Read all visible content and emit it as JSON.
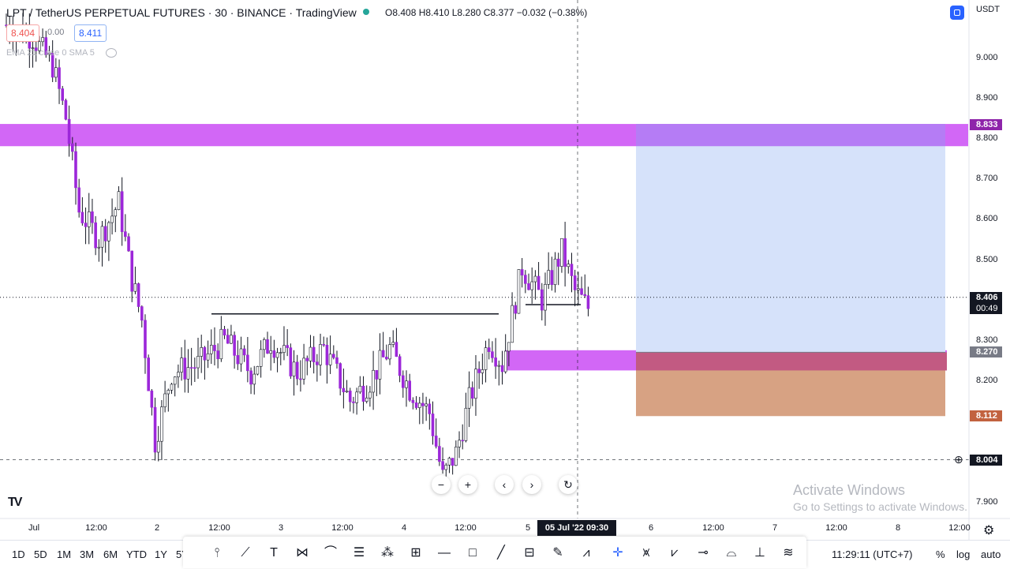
{
  "header": {
    "title": "LPT / TetherUS PERPETUAL FUTURES · 30 · BINANCE · TradingView",
    "ohlc": "O8.408 H8.410 L8.280 C8.377 −0.032 (−0.38%)",
    "sell_price": "8.404",
    "spread": "0.00",
    "buy_price": "8.411",
    "indicator": "EMA 21 close 0 SMA 5",
    "currency": "USDT",
    "status_color": "#26a69a"
  },
  "chart_data": {
    "type": "candlestick",
    "symbol": "LPT / TetherUS PERPETUAL FUTURES",
    "interval": "30",
    "exchange": "BINANCE",
    "ylim": [
      7.86,
      9.12
    ],
    "y_ticks": [
      "9.000",
      "8.900",
      "8.800",
      "8.700",
      "8.600",
      "8.500",
      "8.300",
      "8.200",
      "7.900"
    ],
    "x_ticks": [
      "Jul",
      "12:00",
      "2",
      "12:00",
      "3",
      "12:00",
      "4",
      "12:00",
      "5",
      "6",
      "12:00",
      "7",
      "12:00",
      "8",
      "12:00"
    ],
    "crosshair_x_label": "05 Jul '22   09:30",
    "last_price": "8.406",
    "countdown": "00:49",
    "price_tags": [
      {
        "label": "8.833",
        "color": "#8e24aa"
      },
      {
        "label": "8.270",
        "color": "#787b86"
      },
      {
        "label": "8.112",
        "color": "#c2623f"
      },
      {
        "label": "8.004",
        "color": "#131722"
      }
    ],
    "zones": [
      {
        "name": "supply zone",
        "y_top": 8.835,
        "y_bottom": 8.78,
        "color": "#d05ff5"
      },
      {
        "name": "demand zone",
        "y_top": 8.275,
        "y_bottom": 8.225,
        "color": "#d05ff5"
      },
      {
        "name": "long position target",
        "y_top": 8.833,
        "y_bottom": 8.27,
        "color": "#d6e2fa"
      },
      {
        "name": "long position stop",
        "y_top": 8.27,
        "y_bottom": 8.112,
        "color": "#d7a283"
      }
    ],
    "levels": [
      {
        "name": "range high",
        "y": 8.365
      },
      {
        "name": "entry line",
        "y": 8.388
      },
      {
        "name": "range low",
        "y": 8.004
      },
      {
        "name": "last price",
        "y": 8.406
      }
    ],
    "candle_color": "#9c27d9",
    "wick_color": "#131722",
    "anchors": [
      [
        0,
        9.08
      ],
      [
        8,
        9.05
      ],
      [
        14,
        8.98
      ],
      [
        18,
        8.85
      ],
      [
        22,
        8.62
      ],
      [
        28,
        8.55
      ],
      [
        34,
        8.64
      ],
      [
        38,
        8.45
      ],
      [
        41,
        8.35
      ],
      [
        45,
        8.05
      ],
      [
        50,
        8.22
      ],
      [
        58,
        8.24
      ],
      [
        66,
        8.3
      ],
      [
        74,
        8.22
      ],
      [
        80,
        8.3
      ],
      [
        88,
        8.22
      ],
      [
        96,
        8.28
      ],
      [
        104,
        8.15
      ],
      [
        110,
        8.2
      ],
      [
        116,
        8.28
      ],
      [
        122,
        8.18
      ],
      [
        128,
        8.12
      ],
      [
        132,
        7.96
      ],
      [
        136,
        8.02
      ],
      [
        140,
        8.15
      ],
      [
        146,
        8.3
      ],
      [
        150,
        8.24
      ],
      [
        156,
        8.48
      ],
      [
        162,
        8.4
      ],
      [
        168,
        8.52
      ],
      [
        172,
        8.42
      ],
      [
        176,
        8.38
      ]
    ]
  },
  "nav": {
    "zoom_out": "−",
    "zoom_in": "+",
    "back": "‹",
    "forward": "›",
    "reset": "↻"
  },
  "timeframes": [
    "1D",
    "5D",
    "1M",
    "3M",
    "6M",
    "YTD",
    "1Y",
    "5Y"
  ],
  "footer": {
    "clock": "11:29:11 (UTC+7)",
    "percent": "%",
    "log": "log",
    "auto": "auto"
  },
  "watermark": {
    "line1": "Activate Windows",
    "line2": "Go to Settings to activate Windows."
  },
  "logo": "TV"
}
